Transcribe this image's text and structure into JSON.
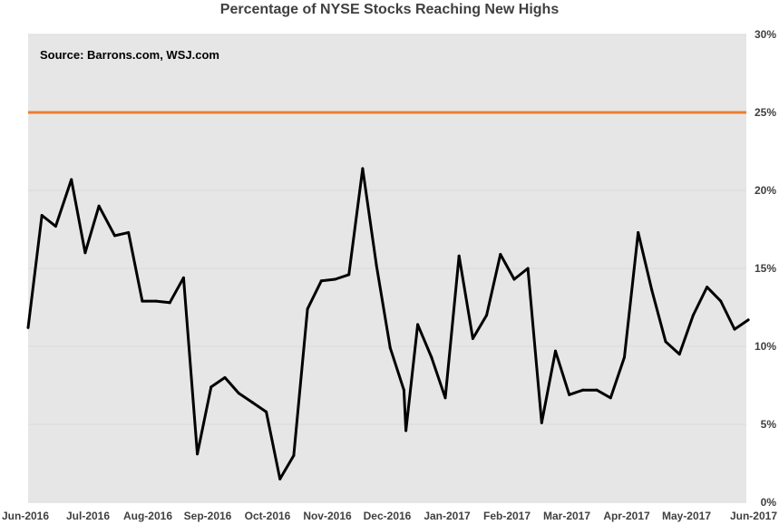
{
  "chart_data": {
    "type": "line",
    "title": "Percentage of NYSE Stocks Reaching New Highs",
    "annotation": "Source: Barrons.com, WSJ.com",
    "x_tick_labels": [
      "Jun-2016",
      "Jul-2016",
      "Aug-2016",
      "Sep-2016",
      "Oct-2016",
      "Nov-2016",
      "Dec-2016",
      "Jan-2017",
      "Feb-2017",
      "Mar-2017",
      "Apr-2017",
      "May-2017",
      "Jun-2017"
    ],
    "y_tick_labels": [
      "0%",
      "5%",
      "10%",
      "15%",
      "20%",
      "25%",
      "30%"
    ],
    "ylim": [
      0,
      30
    ],
    "xlim": [
      "2016-06-01",
      "2017-06-01"
    ],
    "grid": true,
    "legend": "none",
    "series": [
      {
        "color": "#000000",
        "points": [
          [
            "2016-06-01",
            11.2
          ],
          [
            "2016-06-08",
            18.4
          ],
          [
            "2016-06-15",
            17.7
          ],
          [
            "2016-06-23",
            20.7
          ],
          [
            "2016-06-30",
            16.0
          ],
          [
            "2016-07-07",
            19.0
          ],
          [
            "2016-07-15",
            17.1
          ],
          [
            "2016-07-22",
            17.3
          ],
          [
            "2016-07-29",
            12.9
          ],
          [
            "2016-08-05",
            12.9
          ],
          [
            "2016-08-12",
            12.8
          ],
          [
            "2016-08-19",
            14.4
          ],
          [
            "2016-08-26",
            3.1
          ],
          [
            "2016-09-02",
            7.4
          ],
          [
            "2016-09-09",
            8.0
          ],
          [
            "2016-09-16",
            7.0
          ],
          [
            "2016-09-23",
            6.4
          ],
          [
            "2016-09-30",
            5.8
          ],
          [
            "2016-10-07",
            1.5
          ],
          [
            "2016-10-14",
            3.0
          ],
          [
            "2016-10-21",
            12.4
          ],
          [
            "2016-10-28",
            14.2
          ],
          [
            "2016-11-04",
            14.3
          ],
          [
            "2016-11-11",
            14.6
          ],
          [
            "2016-11-18",
            21.4
          ],
          [
            "2016-11-25",
            15.2
          ],
          [
            "2016-12-02",
            9.9
          ],
          [
            "2016-12-09",
            7.2
          ],
          [
            "2016-12-10",
            4.6
          ],
          [
            "2016-12-16",
            11.4
          ],
          [
            "2016-12-23",
            9.3
          ],
          [
            "2016-12-30",
            6.7
          ],
          [
            "2017-01-06",
            15.8
          ],
          [
            "2017-01-13",
            10.5
          ],
          [
            "2017-01-20",
            12.0
          ],
          [
            "2017-01-27",
            15.9
          ],
          [
            "2017-02-03",
            14.3
          ],
          [
            "2017-02-10",
            15.0
          ],
          [
            "2017-02-17",
            5.1
          ],
          [
            "2017-02-24",
            9.7
          ],
          [
            "2017-03-03",
            6.9
          ],
          [
            "2017-03-10",
            7.2
          ],
          [
            "2017-03-17",
            7.2
          ],
          [
            "2017-03-24",
            6.7
          ],
          [
            "2017-03-31",
            9.3
          ],
          [
            "2017-04-07",
            17.3
          ],
          [
            "2017-04-14",
            13.6
          ],
          [
            "2017-04-21",
            10.3
          ],
          [
            "2017-04-28",
            9.5
          ],
          [
            "2017-05-05",
            12.0
          ],
          [
            "2017-05-12",
            13.8
          ],
          [
            "2017-05-19",
            12.9
          ],
          [
            "2017-05-26",
            11.1
          ],
          [
            "2017-06-02",
            11.7
          ]
        ]
      }
    ],
    "reference_line": {
      "y": 25,
      "color": "#ED7D31"
    },
    "colors": {
      "plot_background": "#E7E6E6",
      "gridline": "#D9D9D9",
      "axis_text": "#404040"
    }
  }
}
